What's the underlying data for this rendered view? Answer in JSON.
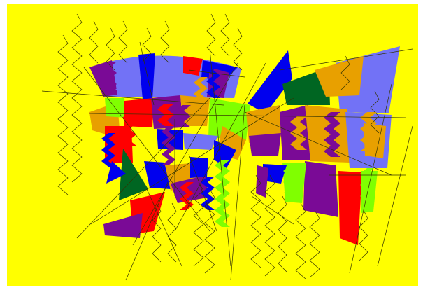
{
  "artwork": {
    "background_color": "#ffffff",
    "canvas_color": "#ffff00",
    "palette": {
      "purple": "#7a0a96",
      "periwinkle": "#7272f6",
      "blue": "#0000ee",
      "red": "#ff0000",
      "orange": "#e8a000",
      "lime": "#80ff00",
      "green": "#006622",
      "line": "#333300"
    }
  }
}
